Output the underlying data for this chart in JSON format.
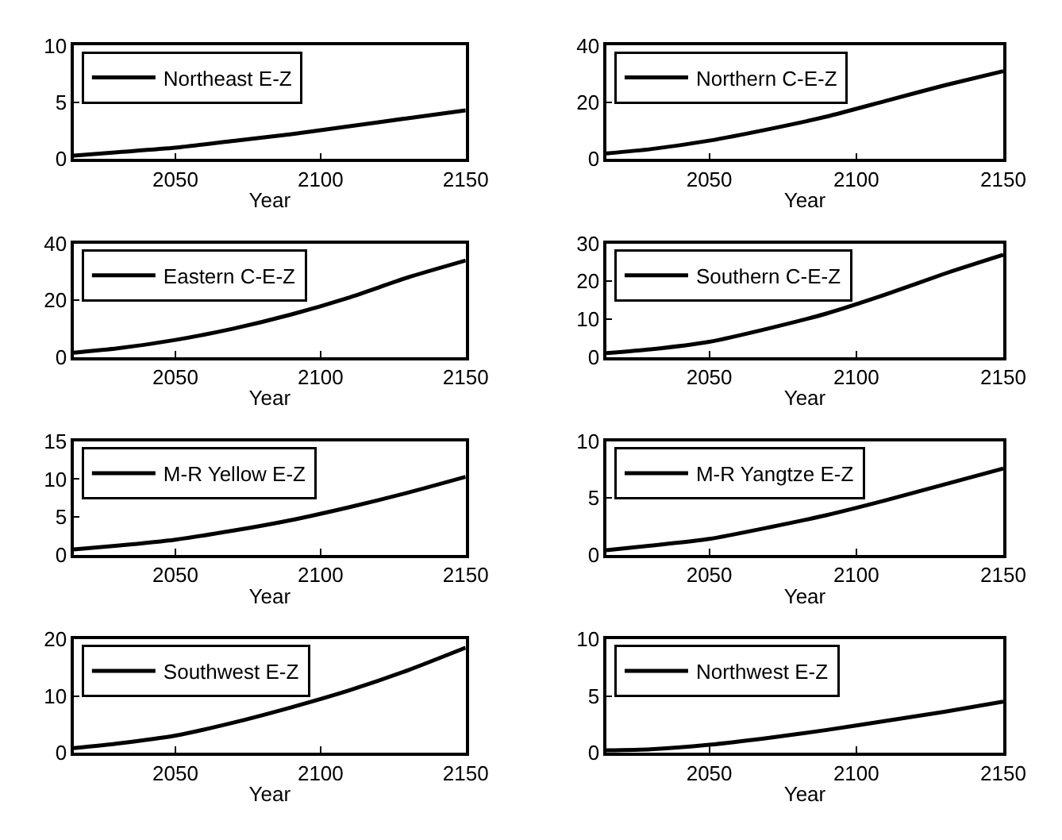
{
  "chart_data": [
    {
      "type": "line",
      "xlabel": "Year",
      "x": [
        2015,
        2030,
        2050,
        2070,
        2090,
        2110,
        2130,
        2150
      ],
      "xlim": [
        2015,
        2150
      ],
      "xticks": [
        2050,
        2100,
        2150
      ],
      "ylim": [
        0,
        10
      ],
      "yticks": [
        0,
        5,
        10
      ],
      "legend": "top left",
      "line_style": "solid",
      "series": [
        {
          "name": "Northeast E-Z",
          "color": "#000000",
          "values": [
            0.3,
            0.6,
            1.0,
            1.6,
            2.2,
            2.9,
            3.6,
            4.3
          ]
        }
      ]
    },
    {
      "type": "line",
      "xlabel": "Year",
      "x": [
        2015,
        2030,
        2050,
        2070,
        2090,
        2110,
        2130,
        2150
      ],
      "xlim": [
        2015,
        2150
      ],
      "xticks": [
        2050,
        2100,
        2150
      ],
      "ylim": [
        0,
        40
      ],
      "yticks": [
        0,
        20,
        40
      ],
      "legend": "top left",
      "line_style": "solid",
      "series": [
        {
          "name": "Northern C-E-Z",
          "color": "#000000",
          "values": [
            2,
            3.5,
            6.5,
            10.5,
            15,
            20.5,
            26,
            31
          ]
        }
      ]
    },
    {
      "type": "line",
      "xlabel": "Year",
      "x": [
        2015,
        2030,
        2050,
        2070,
        2090,
        2110,
        2130,
        2150
      ],
      "xlim": [
        2015,
        2150
      ],
      "xticks": [
        2050,
        2100,
        2150
      ],
      "ylim": [
        0,
        40
      ],
      "yticks": [
        0,
        20,
        40
      ],
      "legend": "top left",
      "line_style": "solid",
      "series": [
        {
          "name": "Eastern C-E-Z",
          "color": "#000000",
          "values": [
            1.5,
            3,
            6,
            10,
            15,
            21,
            28,
            34
          ]
        }
      ]
    },
    {
      "type": "line",
      "xlabel": "Year",
      "x": [
        2015,
        2030,
        2050,
        2070,
        2090,
        2110,
        2130,
        2150
      ],
      "xlim": [
        2015,
        2150
      ],
      "xticks": [
        2050,
        2100,
        2150
      ],
      "ylim": [
        0,
        30
      ],
      "yticks": [
        0,
        10,
        20,
        30
      ],
      "legend": "top left",
      "line_style": "solid",
      "series": [
        {
          "name": "Southern C-E-Z",
          "color": "#000000",
          "values": [
            1,
            2,
            4,
            7.5,
            11.5,
            16.5,
            22,
            27
          ]
        }
      ]
    },
    {
      "type": "line",
      "xlabel": "Year",
      "x": [
        2015,
        2030,
        2050,
        2070,
        2090,
        2110,
        2130,
        2150
      ],
      "xlim": [
        2015,
        2150
      ],
      "xticks": [
        2050,
        2100,
        2150
      ],
      "ylim": [
        0,
        15
      ],
      "yticks": [
        0,
        5,
        10,
        15
      ],
      "legend": "top left",
      "line_style": "solid",
      "series": [
        {
          "name": "M-R Yellow E-Z",
          "color": "#000000",
          "values": [
            0.7,
            1.2,
            2,
            3.2,
            4.6,
            6.3,
            8.2,
            10.3
          ]
        }
      ]
    },
    {
      "type": "line",
      "xlabel": "Year",
      "x": [
        2015,
        2030,
        2050,
        2070,
        2090,
        2110,
        2130,
        2150
      ],
      "xlim": [
        2015,
        2150
      ],
      "xticks": [
        2050,
        2100,
        2150
      ],
      "ylim": [
        0,
        10
      ],
      "yticks": [
        0,
        5,
        10
      ],
      "legend": "top left",
      "line_style": "solid",
      "series": [
        {
          "name": "M-R Yangtze E-Z",
          "color": "#000000",
          "values": [
            0.4,
            0.8,
            1.4,
            2.4,
            3.5,
            4.8,
            6.2,
            7.6
          ]
        }
      ]
    },
    {
      "type": "line",
      "xlabel": "Year",
      "x": [
        2015,
        2030,
        2050,
        2070,
        2090,
        2110,
        2130,
        2150
      ],
      "xlim": [
        2015,
        2150
      ],
      "xticks": [
        2050,
        2100,
        2150
      ],
      "ylim": [
        0,
        20
      ],
      "yticks": [
        0,
        10,
        20
      ],
      "legend": "top left",
      "line_style": "solid",
      "series": [
        {
          "name": "Southwest E-Z",
          "color": "#000000",
          "values": [
            0.8,
            1.6,
            3,
            5.3,
            8,
            11,
            14.5,
            18.5
          ]
        }
      ]
    },
    {
      "type": "line",
      "xlabel": "Year",
      "x": [
        2015,
        2030,
        2050,
        2070,
        2090,
        2110,
        2130,
        2150
      ],
      "xlim": [
        2015,
        2150
      ],
      "xticks": [
        2050,
        2100,
        2150
      ],
      "ylim": [
        0,
        10
      ],
      "yticks": [
        0,
        5,
        10
      ],
      "legend": "top left",
      "line_style": "solid",
      "series": [
        {
          "name": "Northwest E-Z",
          "color": "#000000",
          "values": [
            0.2,
            0.3,
            0.7,
            1.3,
            2.0,
            2.8,
            3.6,
            4.5
          ]
        }
      ]
    }
  ]
}
